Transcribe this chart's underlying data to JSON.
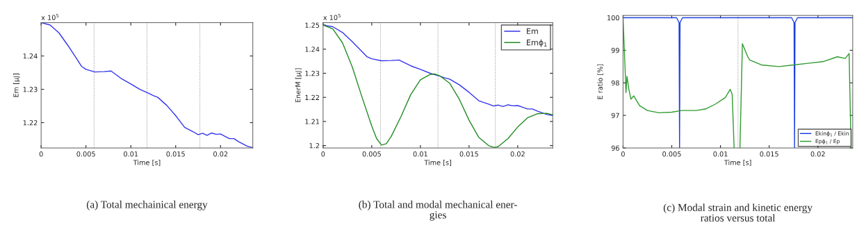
{
  "chart_data": [
    {
      "type": "line",
      "title": "(a) Total mechainical energy",
      "xlabel": "Time [s]",
      "ylabel": "Em [µJ]",
      "annotations": [
        "x 10$^{5}$"
      ],
      "xlim": [
        0,
        0.0236
      ],
      "ylim": [
        1.2124,
        1.25
      ],
      "xticks": [
        0,
        0.005,
        0.01,
        0.015,
        0.02
      ],
      "yticks": [
        1.22,
        1.23,
        1.24
      ],
      "grid": false,
      "legend": false,
      "ref_lines": [
        {
          "axis": "x",
          "value": 0.0059,
          "color": "#808080",
          "line_style": "dotted"
        },
        {
          "axis": "x",
          "value": 0.0118,
          "color": "#808080",
          "line_style": "dotted"
        },
        {
          "axis": "x",
          "value": 0.0177,
          "color": "#808080",
          "line_style": "dotted"
        }
      ],
      "series": [
        {
          "color": "#3333ee",
          "x": [
            0,
            0.001,
            0.002,
            0.003,
            0.004,
            0.0045,
            0.005,
            0.006,
            0.007,
            0.0078,
            0.009,
            0.01,
            0.011,
            0.012,
            0.0125,
            0.013,
            0.014,
            0.015,
            0.016,
            0.017,
            0.0175,
            0.018,
            0.0185,
            0.019,
            0.0195,
            0.02,
            0.0205,
            0.021,
            0.0215,
            0.022,
            0.023,
            0.0236
          ],
          "values": [
            1.25,
            1.2493,
            1.2469,
            1.2431,
            1.239,
            1.2369,
            1.236,
            1.2352,
            1.2353,
            1.2355,
            1.2331,
            1.2316,
            1.23,
            1.2288,
            1.2281,
            1.2276,
            1.2252,
            1.2221,
            1.2186,
            1.2172,
            1.2164,
            1.2168,
            1.2162,
            1.2169,
            1.2165,
            1.2166,
            1.2159,
            1.2152,
            1.2152,
            1.2143,
            1.2129,
            1.2125
          ]
        }
      ]
    },
    {
      "type": "line",
      "title": "(b) Total and modal mechanical ener-\ngies",
      "xlabel": "Time [s]",
      "ylabel": "EnerM [µJ]",
      "annotations": [
        "x 10$^{5}$"
      ],
      "xlim": [
        0,
        0.0236
      ],
      "ylim": [
        1.199,
        1.251
      ],
      "xticks": [
        0,
        0.005,
        0.01,
        0.015,
        0.02
      ],
      "yticks": [
        1.2,
        1.21,
        1.22,
        1.23,
        1.24,
        1.25
      ],
      "grid": false,
      "legend": "top right",
      "ref_lines": [
        {
          "axis": "x",
          "value": 0.0059,
          "color": "#808080",
          "line_style": "dotted"
        },
        {
          "axis": "x",
          "value": 0.0118,
          "color": "#808080",
          "line_style": "dotted"
        },
        {
          "axis": "x",
          "value": 0.0177,
          "color": "#808080",
          "line_style": "dotted"
        }
      ],
      "series": [
        {
          "name": "Em",
          "color": "#3333ee",
          "x": [
            0,
            0.001,
            0.002,
            0.003,
            0.004,
            0.0045,
            0.005,
            0.006,
            0.007,
            0.0078,
            0.009,
            0.01,
            0.011,
            0.012,
            0.0125,
            0.013,
            0.014,
            0.015,
            0.016,
            0.017,
            0.0175,
            0.018,
            0.0185,
            0.019,
            0.0195,
            0.02,
            0.0205,
            0.021,
            0.0215,
            0.022,
            0.023,
            0.0236
          ],
          "values": [
            1.25,
            1.2493,
            1.2469,
            1.2431,
            1.239,
            1.2369,
            1.236,
            1.2352,
            1.2353,
            1.2355,
            1.2331,
            1.2316,
            1.23,
            1.2288,
            1.2281,
            1.2276,
            1.2252,
            1.2221,
            1.2186,
            1.2172,
            1.2164,
            1.2168,
            1.2162,
            1.2169,
            1.2165,
            1.2166,
            1.2159,
            1.2152,
            1.2152,
            1.2143,
            1.2129,
            1.2125
          ]
        },
        {
          "name": "Emϕ$_{1}$",
          "color": "#228b22",
          "x": [
            0,
            0.001,
            0.002,
            0.003,
            0.004,
            0.005,
            0.0055,
            0.006,
            0.0065,
            0.007,
            0.008,
            0.009,
            0.01,
            0.011,
            0.0115,
            0.012,
            0.013,
            0.014,
            0.015,
            0.016,
            0.017,
            0.0176,
            0.018,
            0.019,
            0.02,
            0.021,
            0.022,
            0.023,
            0.0236
          ],
          "values": [
            1.25,
            1.2484,
            1.2426,
            1.2326,
            1.2201,
            1.2081,
            1.2029,
            1.2002,
            1.2008,
            1.2038,
            1.212,
            1.2211,
            1.2273,
            1.2295,
            1.2297,
            1.2289,
            1.2259,
            1.2192,
            1.2105,
            1.2034,
            1.2,
            1.1992,
            1.1996,
            1.2029,
            1.2077,
            1.2115,
            1.2132,
            1.2134,
            1.2127
          ]
        }
      ]
    },
    {
      "type": "line",
      "title": "(c) Modal strain and kinetic energy\nratios versus total",
      "xlabel": "Time [s]",
      "ylabel": "E ratio [%]",
      "xlim": [
        0,
        0.02357
      ],
      "ylim": [
        96,
        100.07
      ],
      "xticks": [
        0,
        0.005,
        0.01,
        0.015,
        0.02
      ],
      "yticks": [
        96,
        97,
        98,
        99,
        100
      ],
      "grid": false,
      "legend": "bottom right",
      "ref_lines": [
        {
          "axis": "x",
          "value": 0.0118,
          "color": "#808080",
          "line_style": "dotted"
        }
      ],
      "series": [
        {
          "name": "Ekinϕ$_{1}$ / Ekin",
          "color": "#1f3fe0",
          "x": [
            0,
            0.0055,
            0.00575,
            0.0058,
            0.00585,
            0.0061,
            0.0173,
            0.01755,
            0.0176,
            0.01765,
            0.0179,
            0.02357
          ],
          "values": [
            100,
            100,
            99.85,
            96,
            99.85,
            100,
            100,
            99.85,
            96,
            99.85,
            100,
            100
          ]
        },
        {
          "name": "Epϕ$_{1}$ / Ep",
          "color": "#2e9b2e",
          "x": [
            0,
            0.0002,
            0.0003,
            0.0004,
            0.0006,
            0.0008,
            0.0011,
            0.0017,
            0.0025,
            0.0037,
            0.005,
            0.006,
            0.0075,
            0.0085,
            0.0095,
            0.0105,
            0.011,
            0.0112,
            0.0114,
            0.0117,
            0.012,
            0.01225,
            0.0128,
            0.013,
            0.0142,
            0.016,
            0.0175,
            0.019,
            0.0205,
            0.022,
            0.0228,
            0.0232,
            0.0234
          ],
          "values": [
            100,
            98.5,
            97.7,
            98.2,
            97.8,
            97.5,
            97.6,
            97.3,
            97.15,
            97.08,
            97.1,
            97.15,
            97.15,
            97.2,
            97.35,
            97.55,
            97.8,
            97.65,
            96,
            null,
            96,
            99.2,
            98.8,
            98.7,
            98.55,
            98.5,
            98.55,
            98.6,
            98.65,
            98.8,
            98.75,
            98.9,
            96
          ]
        }
      ]
    }
  ]
}
